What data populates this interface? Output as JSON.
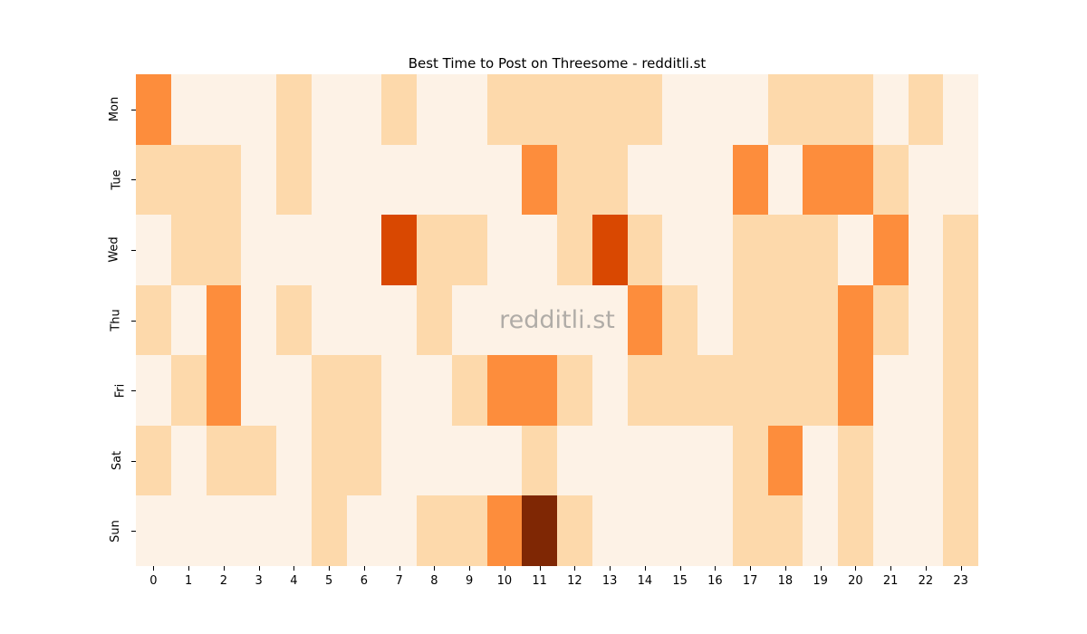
{
  "watermark": "redditli.st",
  "chart_data": {
    "type": "heatmap",
    "title": "Best Time to Post on Threesome - redditli.st",
    "xlabel": "",
    "ylabel": "",
    "x_labels": [
      "0",
      "1",
      "2",
      "3",
      "4",
      "5",
      "6",
      "7",
      "8",
      "9",
      "10",
      "11",
      "12",
      "13",
      "14",
      "15",
      "16",
      "17",
      "18",
      "19",
      "20",
      "21",
      "22",
      "23"
    ],
    "y_labels": [
      "Mon",
      "Tue",
      "Wed",
      "Thu",
      "Fri",
      "Sat",
      "Sun"
    ],
    "colormap": "Oranges",
    "legend": "none",
    "grid": false,
    "level_colors": [
      "#fdf2e6",
      "#fdd9ab",
      "#fd8d3c",
      "#d94801",
      "#7f2704"
    ],
    "level_meaning": "0=lowest activity, 4=highest activity",
    "values": [
      [
        2,
        0,
        0,
        0,
        1,
        0,
        0,
        1,
        0,
        0,
        1,
        1,
        1,
        1,
        1,
        0,
        0,
        0,
        1,
        1,
        1,
        0,
        1,
        0
      ],
      [
        1,
        1,
        1,
        0,
        1,
        0,
        0,
        0,
        0,
        0,
        0,
        2,
        1,
        1,
        0,
        0,
        0,
        2,
        0,
        2,
        2,
        1,
        0,
        0
      ],
      [
        0,
        1,
        1,
        0,
        0,
        0,
        0,
        3,
        1,
        1,
        0,
        0,
        1,
        3,
        1,
        0,
        0,
        1,
        1,
        1,
        0,
        2,
        0,
        1
      ],
      [
        1,
        0,
        2,
        0,
        1,
        0,
        0,
        0,
        1,
        0,
        0,
        0,
        0,
        0,
        2,
        1,
        0,
        1,
        1,
        1,
        2,
        1,
        0,
        1
      ],
      [
        0,
        1,
        2,
        0,
        0,
        1,
        1,
        0,
        0,
        1,
        2,
        2,
        1,
        0,
        1,
        1,
        1,
        1,
        1,
        1,
        2,
        0,
        0,
        1
      ],
      [
        1,
        0,
        1,
        1,
        0,
        1,
        1,
        0,
        0,
        0,
        0,
        1,
        0,
        0,
        0,
        0,
        0,
        1,
        2,
        0,
        1,
        0,
        0,
        1
      ],
      [
        0,
        0,
        0,
        0,
        0,
        1,
        0,
        0,
        1,
        1,
        2,
        4,
        1,
        0,
        0,
        0,
        0,
        1,
        1,
        0,
        1,
        0,
        0,
        1
      ]
    ]
  }
}
